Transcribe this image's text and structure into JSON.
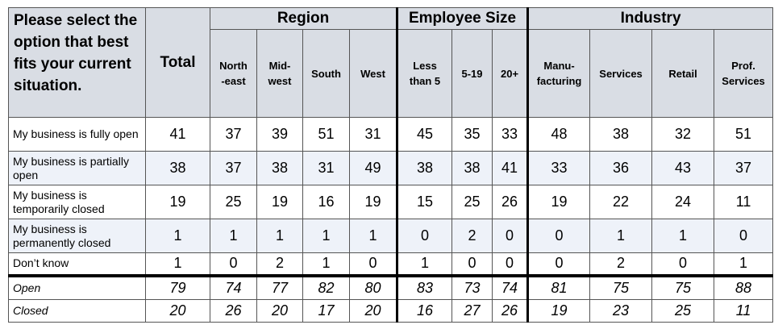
{
  "header": {
    "question": "Please select the option that best fits your current situation.",
    "total": "Total",
    "groups": [
      {
        "label": "Region",
        "columns": [
          "North\n-east",
          "Mid-\nwest",
          "South",
          "West"
        ]
      },
      {
        "label": "Employee Size",
        "columns": [
          "Less\nthan 5",
          "5-19",
          "20+"
        ]
      },
      {
        "label": "Industry",
        "columns": [
          "Manu-\nfacturing",
          "Services",
          "Retail",
          "Prof.\nServices"
        ]
      }
    ]
  },
  "rows": [
    {
      "label": "My business is fully open",
      "values": [
        41,
        37,
        39,
        51,
        31,
        45,
        35,
        33,
        48,
        38,
        32,
        51
      ]
    },
    {
      "label": "My business is partially open",
      "values": [
        38,
        37,
        38,
        31,
        49,
        38,
        38,
        41,
        33,
        36,
        43,
        37
      ]
    },
    {
      "label": "My business is temporarily closed",
      "values": [
        19,
        25,
        19,
        16,
        19,
        15,
        25,
        26,
        19,
        22,
        24,
        11
      ]
    },
    {
      "label": "My business is permanently closed",
      "values": [
        1,
        1,
        1,
        1,
        1,
        0,
        2,
        0,
        0,
        1,
        1,
        0
      ]
    },
    {
      "label": "Don’t know",
      "values": [
        1,
        0,
        2,
        1,
        0,
        1,
        0,
        0,
        0,
        2,
        0,
        1
      ]
    }
  ],
  "summary_rows": [
    {
      "label": "Open",
      "values": [
        79,
        74,
        77,
        82,
        80,
        83,
        73,
        74,
        81,
        75,
        75,
        88
      ]
    },
    {
      "label": "Closed",
      "values": [
        20,
        26,
        20,
        17,
        20,
        16,
        27,
        26,
        19,
        23,
        25,
        11
      ]
    }
  ]
}
